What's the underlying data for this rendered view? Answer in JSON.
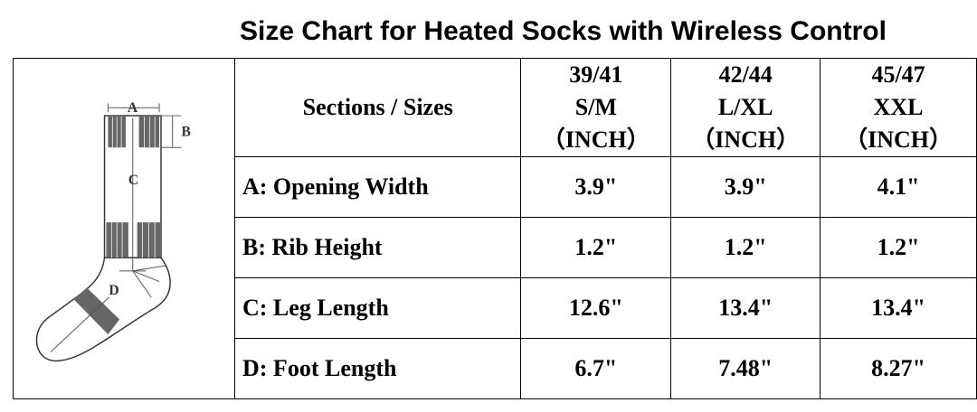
{
  "title": "Size Chart for Heated Socks with Wireless Control",
  "diagram": {
    "labels": [
      "A",
      "B",
      "C",
      "D"
    ]
  },
  "table": {
    "corner_header": "Sections / Sizes",
    "columns": [
      {
        "eu": "39/41",
        "size": "S/M",
        "unit": "（INCH）"
      },
      {
        "eu": "42/44",
        "size": "L/XL",
        "unit": "（INCH）"
      },
      {
        "eu": "45/47",
        "size": "XXL",
        "unit": "（INCH）"
      }
    ],
    "rows": [
      {
        "label": "A: Opening Width",
        "values": [
          "3.9\"",
          "3.9\"",
          "4.1\""
        ]
      },
      {
        "label": "B: Rib Height",
        "values": [
          "1.2\"",
          "1.2\"",
          "1.2\""
        ]
      },
      {
        "label": "C: Leg Length",
        "values": [
          "12.6\"",
          "13.4\"",
          "13.4\""
        ]
      },
      {
        "label": "D: Foot Length",
        "values": [
          "6.7\"",
          "7.48\"",
          "8.27\""
        ]
      }
    ]
  }
}
